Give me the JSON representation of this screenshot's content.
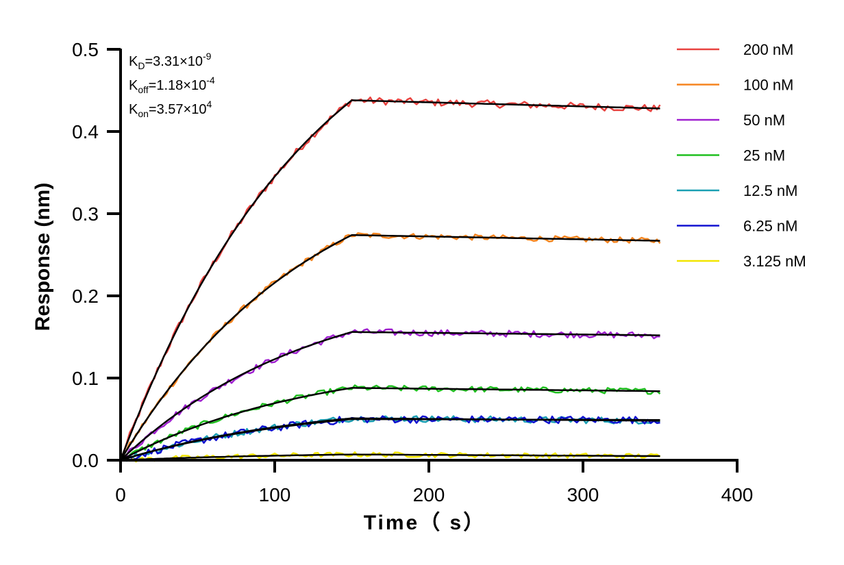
{
  "chart_data": {
    "type": "line",
    "xlabel": "Time（ s）",
    "ylabel": "Response (nm)",
    "xlim": [
      0,
      400
    ],
    "ylim": [
      0,
      0.5
    ],
    "x_ticks": [
      "0",
      "100",
      "200",
      "300",
      "400"
    ],
    "y_ticks": [
      "0.0",
      "0.1",
      "0.2",
      "0.3",
      "0.4",
      "0.5"
    ],
    "x_tick_values": [
      0,
      100,
      200,
      300,
      400
    ],
    "y_tick_values": [
      0,
      0.1,
      0.2,
      0.3,
      0.4,
      0.5
    ],
    "grid": false,
    "legend_position": "top-right",
    "association_end_s": 150,
    "dissociation_end_s": 350,
    "annotations": {
      "kd": {
        "base": "K",
        "sub": "D",
        "rest": "=3.31×10",
        "sup": "-9"
      },
      "koff": {
        "base": "K",
        "sub": "off",
        "rest": "=1.18×10",
        "sup": "-4"
      },
      "kon": {
        "base": "K",
        "sub": "on",
        "rest": "=3.57×10",
        "sup": "4"
      }
    },
    "series": [
      {
        "name": "200 nM",
        "color": "#e8423f",
        "plateau": 0.438,
        "end": 0.428,
        "noise": 0.0045
      },
      {
        "name": "100 nM",
        "color": "#f5841f",
        "plateau": 0.274,
        "end": 0.267,
        "noise": 0.0035
      },
      {
        "name": "50 nM",
        "color": "#a020d0",
        "plateau": 0.156,
        "end": 0.152,
        "noise": 0.004
      },
      {
        "name": "25 nM",
        "color": "#1fbf1f",
        "plateau": 0.088,
        "end": 0.084,
        "noise": 0.0035
      },
      {
        "name": "12.5 nM",
        "color": "#1a9fb3",
        "plateau": 0.051,
        "end": 0.048,
        "noise": 0.004
      },
      {
        "name": "6.25 nM",
        "color": "#1010d0",
        "plateau": 0.05,
        "end": 0.049,
        "noise": 0.0045
      },
      {
        "name": "3.125 nM",
        "color": "#f2e600",
        "plateau": 0.007,
        "end": 0.005,
        "noise": 0.003
      }
    ],
    "fit_color": "#000000"
  }
}
